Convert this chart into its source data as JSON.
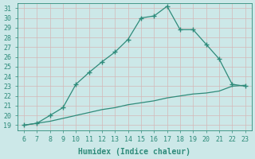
{
  "x_upper": [
    6,
    7,
    8,
    9,
    10,
    11,
    12,
    13,
    14,
    15,
    16,
    17,
    18,
    19,
    20,
    21,
    22,
    23
  ],
  "y_upper": [
    19.0,
    19.2,
    20.0,
    20.8,
    23.2,
    24.4,
    25.5,
    26.5,
    27.8,
    30.0,
    30.2,
    31.2,
    28.8,
    28.8,
    27.3,
    25.8,
    23.2,
    23.0
  ],
  "x_lower": [
    6,
    7,
    8,
    9,
    10,
    11,
    12,
    13,
    14,
    15,
    16,
    17,
    18,
    19,
    20,
    21,
    22,
    23
  ],
  "y_lower": [
    19.0,
    19.2,
    19.4,
    19.7,
    20.0,
    20.3,
    20.6,
    20.8,
    21.1,
    21.3,
    21.5,
    21.8,
    22.0,
    22.2,
    22.3,
    22.5,
    23.0,
    23.1
  ],
  "line_color": "#2e8b7a",
  "bg_color": "#cce8e8",
  "grid_color": "#b8d0d0",
  "xlabel": "Humidex (Indice chaleur)",
  "xlim": [
    5.5,
    23.5
  ],
  "ylim": [
    18.5,
    31.5
  ],
  "xticks": [
    6,
    7,
    8,
    9,
    10,
    11,
    12,
    13,
    14,
    15,
    16,
    17,
    18,
    19,
    20,
    21,
    22,
    23
  ],
  "yticks": [
    19,
    20,
    21,
    22,
    23,
    24,
    25,
    26,
    27,
    28,
    29,
    30,
    31
  ],
  "marker": "+",
  "markersize": 4,
  "linewidth": 0.9,
  "xlabel_fontsize": 7,
  "tick_fontsize": 6,
  "tick_color": "#2e8b7a",
  "label_color": "#2e8b7a",
  "spine_color": "#2e8b7a"
}
